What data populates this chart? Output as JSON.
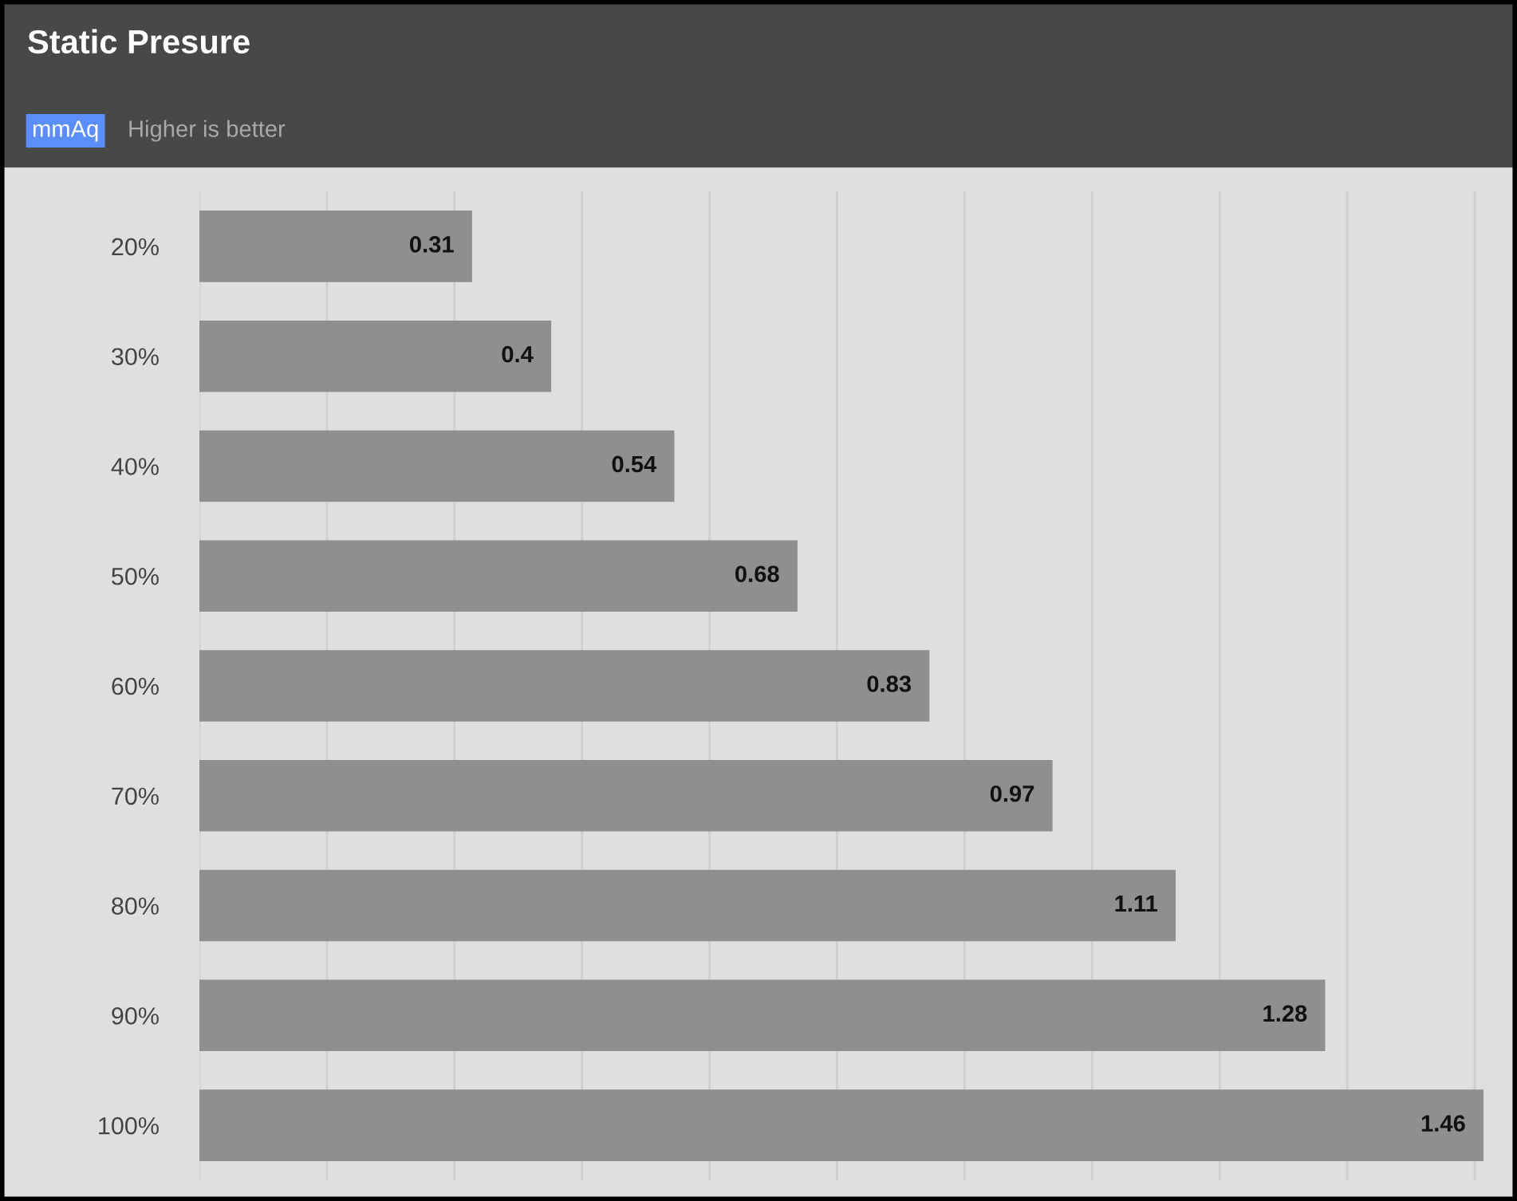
{
  "chart_data": {
    "type": "bar",
    "orientation": "horizontal",
    "title": "Static Presure",
    "annotations": [
      "mmAq",
      "Higher is better"
    ],
    "categories": [
      "20%",
      "30%",
      "40%",
      "50%",
      "60%",
      "70%",
      "80%",
      "90%",
      "100%"
    ],
    "values": [
      0.31,
      0.4,
      0.54,
      0.68,
      0.83,
      0.97,
      1.11,
      1.28,
      1.46
    ],
    "color": "#8f8f8f",
    "data_labels": true,
    "xticks": [
      {
        "value": 0,
        "label": null
      },
      {
        "value": 0.145,
        "label": null
      },
      {
        "value": 0.29,
        "label": null
      },
      {
        "value": 0.435,
        "label": null
      },
      {
        "value": 0.58,
        "label": null
      },
      {
        "value": 0.725,
        "label": null
      },
      {
        "value": 0.87,
        "label": null
      },
      {
        "value": 1.015,
        "label": null
      },
      {
        "value": 1.16,
        "label": null
      },
      {
        "value": 1.305,
        "label": null
      },
      {
        "value": 1.45,
        "label": null
      }
    ],
    "grid": "x",
    "tick_labels": "y"
  }
}
